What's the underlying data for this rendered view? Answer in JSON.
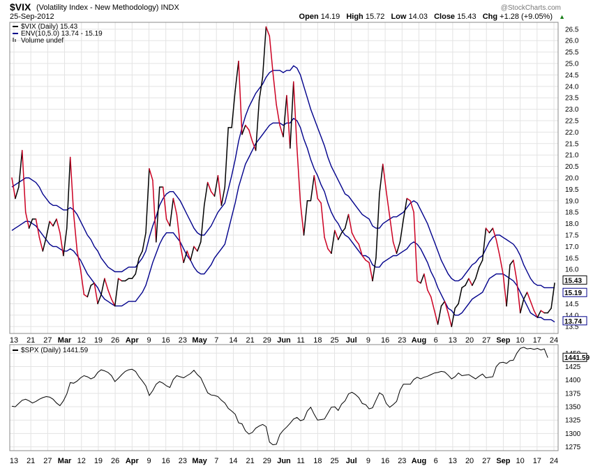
{
  "header": {
    "symbol": "$VIX",
    "subtitle": "(Volatility Index - New Methodology) INDX",
    "date": "25-Sep-2012",
    "watermark": "@StockCharts.com",
    "quote": {
      "open_label": "Open",
      "open": "14.19",
      "high_label": "High",
      "high": "15.72",
      "low_label": "Low",
      "low": "14.03",
      "close_label": "Close",
      "close": "15.43",
      "chg_label": "Chg",
      "chg": "+1.28 (+9.05%)",
      "chg_arrow": "▲"
    }
  },
  "colors": {
    "up": "#000000",
    "down": "#cc0022",
    "envelope": "#00008b",
    "spx": "#000000",
    "grid": "#e3e3e3"
  },
  "chart_data": [
    {
      "type": "line",
      "legend": [
        "$VIX (Daily) 15.43",
        "ENV(10,5.0) 13.74 - 15.19",
        "Volume undef"
      ],
      "legend_placement": "top-left",
      "ylim": [
        13.2,
        26.8
      ],
      "y_ticks": [
        13.5,
        14.0,
        14.5,
        15.0,
        15.5,
        16.0,
        16.5,
        17.0,
        17.5,
        18.0,
        18.5,
        19.0,
        19.5,
        20.0,
        20.5,
        21.0,
        21.5,
        22.0,
        22.5,
        23.0,
        23.5,
        24.0,
        24.5,
        25.0,
        25.5,
        26.0,
        26.5
      ],
      "last_value_labels": [
        "15.43",
        "15.19",
        "13.74"
      ],
      "grid": true,
      "series": [
        {
          "name": "$VIX",
          "values": [
            20.0,
            19.1,
            19.6,
            21.2,
            18.5,
            17.8,
            18.2,
            18.2,
            17.4,
            16.8,
            17.4,
            18.1,
            17.9,
            18.2,
            17.6,
            16.6,
            17.8,
            20.9,
            18.4,
            16.8,
            16.0,
            14.9,
            14.8,
            15.3,
            15.4,
            14.5,
            14.9,
            15.6,
            15.1,
            14.7,
            14.4,
            15.6,
            15.5,
            15.5,
            15.6,
            15.6,
            15.8,
            16.5,
            16.8,
            17.6,
            20.4,
            19.9,
            17.2,
            19.6,
            19.6,
            18.2,
            17.9,
            19.1,
            18.4,
            17.1,
            16.3,
            16.8,
            16.4,
            17.0,
            16.8,
            17.2,
            18.8,
            19.8,
            19.4,
            19.2,
            20.1,
            18.8,
            19.6,
            22.2,
            22.2,
            23.8,
            25.1,
            21.9,
            22.3,
            22.1,
            21.6,
            21.2,
            23.4,
            24.4,
            26.6,
            26.2,
            24.6,
            23.2,
            22.3,
            21.8,
            23.6,
            21.3,
            24.2,
            21.3,
            18.9,
            17.5,
            19.0,
            19.0,
            20.1,
            19.1,
            18.9,
            17.4,
            16.9,
            16.7,
            17.7,
            17.3,
            17.6,
            17.8,
            18.4,
            17.6,
            17.3,
            17.1,
            16.6,
            16.4,
            16.3,
            15.5,
            16.5,
            19.3,
            20.6,
            19.4,
            18.3,
            17.2,
            16.7,
            17.2,
            18.2,
            19.1,
            19.0,
            18.5,
            15.5,
            15.4,
            15.8,
            15.1,
            14.8,
            14.2,
            13.6,
            14.4,
            14.6,
            14.1,
            13.5,
            14.3,
            14.5,
            15.2,
            15.3,
            15.6,
            15.3,
            15.6,
            16.1,
            16.4,
            17.8,
            17.6,
            17.8,
            17.3,
            16.6,
            15.8,
            14.4,
            16.2,
            16.4,
            15.5,
            14.1,
            14.7,
            15.0,
            14.6,
            14.2,
            13.9,
            14.2,
            14.1,
            14.1,
            14.3,
            15.4
          ]
        },
        {
          "name": "Envelope upper",
          "values": [
            19.6,
            19.7,
            19.8,
            19.9,
            20.0,
            20.0,
            19.9,
            19.8,
            19.6,
            19.3,
            19.1,
            18.9,
            18.8,
            18.8,
            18.7,
            18.6,
            18.6,
            18.7,
            18.6,
            18.4,
            18.1,
            17.8,
            17.5,
            17.3,
            17.0,
            16.8,
            16.5,
            16.3,
            16.1,
            16.0,
            15.9,
            15.9,
            15.9,
            16.0,
            16.1,
            16.1,
            16.1,
            16.3,
            16.5,
            16.8,
            17.4,
            17.9,
            18.3,
            18.8,
            19.1,
            19.3,
            19.4,
            19.4,
            19.2,
            19.0,
            18.7,
            18.4,
            18.1,
            17.8,
            17.6,
            17.5,
            17.5,
            17.7,
            17.9,
            18.2,
            18.5,
            18.7,
            18.9,
            19.5,
            20.1,
            20.8,
            21.6,
            22.2,
            22.7,
            23.1,
            23.4,
            23.7,
            23.9,
            24.1,
            24.4,
            24.6,
            24.7,
            24.7,
            24.7,
            24.6,
            24.7,
            24.7,
            24.9,
            24.8,
            24.5,
            24.0,
            23.5,
            23.0,
            22.6,
            22.2,
            21.8,
            21.4,
            20.9,
            20.5,
            20.2,
            19.9,
            19.6,
            19.3,
            19.2,
            19.0,
            18.8,
            18.6,
            18.4,
            18.3,
            18.2,
            17.9,
            17.8,
            17.8,
            18.0,
            18.1,
            18.2,
            18.3,
            18.3,
            18.4,
            18.5,
            18.7,
            18.9,
            19.0,
            18.9,
            18.6,
            18.3,
            18.0,
            17.6,
            17.2,
            16.8,
            16.4,
            16.1,
            15.8,
            15.6,
            15.5,
            15.5,
            15.6,
            15.8,
            16.0,
            16.2,
            16.3,
            16.5,
            16.6,
            16.9,
            17.2,
            17.4,
            17.5,
            17.5,
            17.4,
            17.3,
            17.2,
            17.1,
            16.9,
            16.6,
            16.2,
            15.9,
            15.6,
            15.4,
            15.3,
            15.3,
            15.2,
            15.2,
            15.2,
            15.2
          ]
        },
        {
          "name": "Envelope lower",
          "values": [
            17.7,
            17.8,
            17.9,
            18.0,
            18.1,
            18.1,
            18.0,
            17.9,
            17.7,
            17.5,
            17.3,
            17.1,
            17.0,
            17.0,
            16.9,
            16.8,
            16.8,
            16.9,
            16.8,
            16.6,
            16.4,
            16.1,
            15.8,
            15.6,
            15.4,
            15.2,
            14.9,
            14.7,
            14.6,
            14.5,
            14.4,
            14.4,
            14.4,
            14.5,
            14.6,
            14.6,
            14.6,
            14.8,
            15.0,
            15.3,
            15.8,
            16.3,
            16.7,
            17.1,
            17.4,
            17.6,
            17.6,
            17.6,
            17.4,
            17.2,
            16.9,
            16.6,
            16.4,
            16.1,
            15.9,
            15.8,
            15.8,
            16.0,
            16.2,
            16.5,
            16.7,
            16.9,
            17.1,
            17.7,
            18.3,
            18.9,
            19.6,
            20.1,
            20.6,
            20.9,
            21.2,
            21.5,
            21.7,
            21.9,
            22.1,
            22.3,
            22.4,
            22.4,
            22.4,
            22.3,
            22.4,
            22.4,
            22.6,
            22.5,
            22.2,
            21.7,
            21.3,
            20.8,
            20.4,
            20.1,
            19.7,
            19.4,
            18.9,
            18.5,
            18.2,
            18.0,
            17.7,
            17.5,
            17.4,
            17.2,
            17.0,
            16.8,
            16.6,
            16.6,
            16.5,
            16.2,
            16.1,
            16.1,
            16.3,
            16.4,
            16.5,
            16.6,
            16.6,
            16.7,
            16.8,
            16.9,
            17.1,
            17.2,
            17.1,
            16.9,
            16.6,
            16.3,
            15.9,
            15.6,
            15.2,
            14.9,
            14.6,
            14.3,
            14.2,
            14.0,
            14.0,
            14.1,
            14.3,
            14.5,
            14.7,
            14.8,
            14.9,
            15.0,
            15.3,
            15.6,
            15.7,
            15.8,
            15.8,
            15.8,
            15.7,
            15.6,
            15.5,
            15.3,
            15.0,
            14.7,
            14.4,
            14.1,
            14.0,
            13.9,
            13.9,
            13.8,
            13.8,
            13.8,
            13.7
          ]
        }
      ]
    },
    {
      "type": "line",
      "legend": [
        "$SPX (Daily) 1441.59"
      ],
      "legend_placement": "top-left",
      "ylim": [
        1268,
        1466
      ],
      "y_ticks": [
        1275,
        1300,
        1325,
        1350,
        1375,
        1400,
        1425,
        1450
      ],
      "last_value_label": "1441.59",
      "grid": true,
      "series": [
        {
          "name": "$SPX",
          "values": [
            1351,
            1350,
            1356,
            1362,
            1364,
            1361,
            1357,
            1360,
            1364,
            1367,
            1369,
            1368,
            1364,
            1357,
            1352,
            1361,
            1374,
            1395,
            1394,
            1398,
            1404,
            1408,
            1406,
            1402,
            1405,
            1414,
            1419,
            1417,
            1414,
            1408,
            1397,
            1403,
            1410,
            1416,
            1419,
            1420,
            1416,
            1406,
            1398,
            1389,
            1371,
            1380,
            1392,
            1397,
            1394,
            1389,
            1386,
            1401,
            1408,
            1406,
            1404,
            1408,
            1412,
            1418,
            1410,
            1404,
            1390,
            1376,
            1372,
            1371,
            1369,
            1362,
            1357,
            1347,
            1342,
            1336,
            1320,
            1318,
            1305,
            1299,
            1302,
            1310,
            1314,
            1317,
            1313,
            1284,
            1279,
            1280,
            1298,
            1306,
            1312,
            1319,
            1327,
            1330,
            1324,
            1326,
            1342,
            1349,
            1336,
            1325,
            1326,
            1327,
            1338,
            1349,
            1350,
            1343,
            1355,
            1361,
            1374,
            1377,
            1373,
            1367,
            1356,
            1354,
            1346,
            1348,
            1362,
            1376,
            1372,
            1356,
            1349,
            1354,
            1360,
            1381,
            1392,
            1392,
            1392,
            1401,
            1405,
            1402,
            1405,
            1407,
            1410,
            1413,
            1414,
            1416,
            1415,
            1409,
            1402,
            1406,
            1413,
            1408,
            1409,
            1410,
            1406,
            1402,
            1407,
            1411,
            1404,
            1405,
            1406,
            1425,
            1432,
            1433,
            1431,
            1436,
            1437,
            1450,
            1459,
            1461,
            1458,
            1459,
            1457,
            1459,
            1456,
            1458,
            1441.6
          ]
        }
      ]
    }
  ],
  "x_labels": [
    {
      "text": "13",
      "bold": false
    },
    {
      "text": "21",
      "bold": false
    },
    {
      "text": "27",
      "bold": false
    },
    {
      "text": "Mar",
      "bold": true
    },
    {
      "text": "12",
      "bold": false
    },
    {
      "text": "19",
      "bold": false
    },
    {
      "text": "26",
      "bold": false
    },
    {
      "text": "Apr",
      "bold": true
    },
    {
      "text": "9",
      "bold": false
    },
    {
      "text": "16",
      "bold": false
    },
    {
      "text": "23",
      "bold": false
    },
    {
      "text": "May",
      "bold": true
    },
    {
      "text": "7",
      "bold": false
    },
    {
      "text": "14",
      "bold": false
    },
    {
      "text": "21",
      "bold": false
    },
    {
      "text": "29",
      "bold": false
    },
    {
      "text": "Jun",
      "bold": true
    },
    {
      "text": "11",
      "bold": false
    },
    {
      "text": "18",
      "bold": false
    },
    {
      "text": "25",
      "bold": false
    },
    {
      "text": "Jul",
      "bold": true
    },
    {
      "text": "9",
      "bold": false
    },
    {
      "text": "16",
      "bold": false
    },
    {
      "text": "23",
      "bold": false
    },
    {
      "text": "Aug",
      "bold": true
    },
    {
      "text": "6",
      "bold": false
    },
    {
      "text": "13",
      "bold": false
    },
    {
      "text": "20",
      "bold": false
    },
    {
      "text": "27",
      "bold": false
    },
    {
      "text": "Sep",
      "bold": true
    },
    {
      "text": "10",
      "bold": false
    },
    {
      "text": "17",
      "bold": false
    },
    {
      "text": "24",
      "bold": false
    }
  ]
}
